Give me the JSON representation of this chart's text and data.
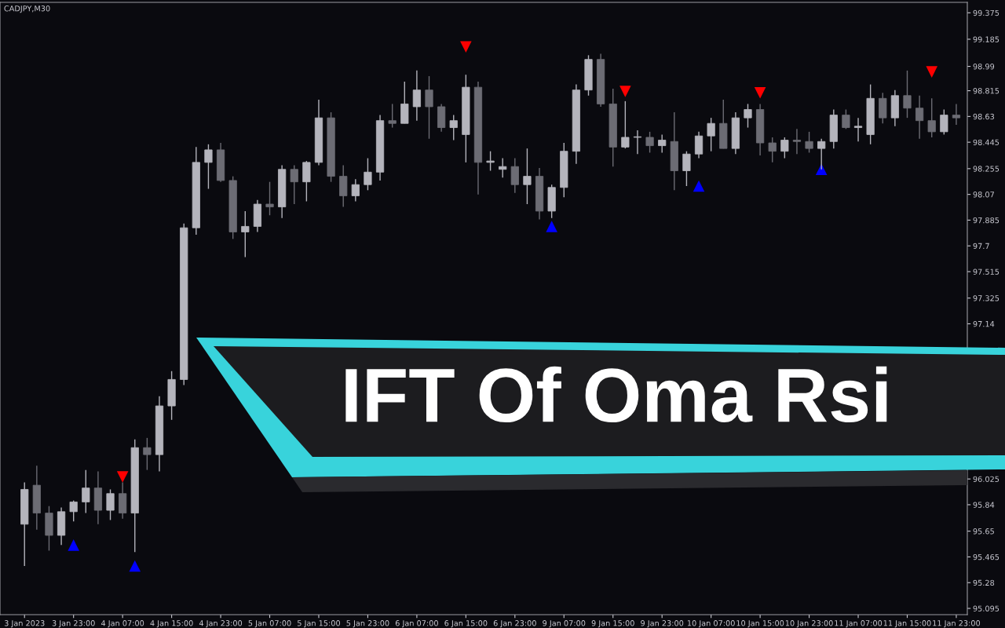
{
  "chart_data": {
    "type": "candlestick",
    "title": "IFT Of Oma Rsi",
    "annotations": [
      "CADJPY,M30"
    ],
    "categories": [
      "3 Jan 2023",
      null,
      null,
      null,
      "3 Jan 23:00",
      null,
      null,
      null,
      "4 Jan 07:00",
      null,
      null,
      null,
      "4 Jan 15:00",
      null,
      null,
      null,
      "4 Jan 23:00",
      null,
      null,
      null,
      "5 Jan 07:00",
      null,
      null,
      null,
      "5 Jan 15:00",
      null,
      null,
      null,
      "5 Jan 23:00",
      null,
      null,
      null,
      "6 Jan 07:00",
      null,
      null,
      null,
      "6 Jan 15:00",
      null,
      null,
      null,
      "6 Jan 23:00",
      null,
      null,
      null,
      "9 Jan 07:00",
      null,
      null,
      null,
      "9 Jan 15:00",
      null,
      null,
      null,
      "9 Jan 23:00",
      null,
      null,
      null,
      "10 Jan 07:00",
      null,
      null,
      null,
      "10 Jan 15:00",
      null,
      null,
      null,
      "10 Jan 23:00",
      null,
      null,
      null,
      "11 Jan 07:00",
      null,
      null,
      null,
      "11 Jan 15:00",
      null,
      null,
      null,
      "11 Jan 23:00"
    ],
    "ohlc": [
      [
        95.7,
        96.0,
        95.4,
        95.95
      ],
      [
        95.98,
        96.12,
        95.66,
        95.78
      ],
      [
        95.78,
        95.83,
        95.51,
        95.62
      ],
      [
        95.62,
        95.82,
        95.55,
        95.79
      ],
      [
        95.79,
        95.87,
        95.72,
        95.86
      ],
      [
        95.86,
        96.09,
        95.78,
        95.96
      ],
      [
        95.96,
        96.08,
        95.7,
        95.8
      ],
      [
        95.8,
        95.95,
        95.73,
        95.92
      ],
      [
        95.92,
        96.0,
        95.74,
        95.78
      ],
      [
        95.78,
        96.31,
        95.5,
        96.25
      ],
      [
        96.25,
        96.32,
        96.09,
        96.2
      ],
      [
        96.2,
        96.62,
        96.08,
        96.55
      ],
      [
        96.55,
        96.8,
        96.45,
        96.74
      ],
      [
        96.74,
        97.86,
        96.7,
        97.83
      ],
      [
        97.83,
        98.41,
        97.78,
        98.3
      ],
      [
        98.3,
        98.43,
        98.11,
        98.39
      ],
      [
        98.39,
        98.44,
        98.16,
        98.17
      ],
      [
        98.17,
        98.2,
        97.75,
        97.8
      ],
      [
        97.8,
        97.95,
        97.62,
        97.84
      ],
      [
        97.84,
        98.03,
        97.8,
        98.0
      ],
      [
        98.0,
        98.16,
        97.92,
        97.98
      ],
      [
        97.98,
        98.28,
        97.9,
        98.25
      ],
      [
        98.25,
        98.28,
        98.0,
        98.16
      ],
      [
        98.16,
        98.31,
        98.02,
        98.3
      ],
      [
        98.3,
        98.75,
        98.28,
        98.62
      ],
      [
        98.62,
        98.66,
        98.16,
        98.2
      ],
      [
        98.2,
        98.28,
        97.98,
        98.06
      ],
      [
        98.06,
        98.18,
        98.02,
        98.14
      ],
      [
        98.14,
        98.33,
        98.1,
        98.23
      ],
      [
        98.23,
        98.64,
        98.17,
        98.6
      ],
      [
        98.6,
        98.72,
        98.55,
        98.58
      ],
      [
        98.58,
        98.88,
        98.58,
        98.72
      ],
      [
        98.7,
        98.96,
        98.6,
        98.82
      ],
      [
        98.82,
        98.92,
        98.47,
        98.7
      ],
      [
        98.7,
        98.72,
        98.52,
        98.55
      ],
      [
        98.55,
        98.64,
        98.46,
        98.6
      ],
      [
        98.5,
        98.93,
        98.3,
        98.84
      ],
      [
        98.84,
        98.88,
        98.07,
        98.3
      ],
      [
        98.3,
        98.38,
        98.24,
        98.31
      ],
      [
        98.25,
        98.33,
        98.19,
        98.27
      ],
      [
        98.27,
        98.33,
        98.08,
        98.14
      ],
      [
        98.14,
        98.4,
        98.0,
        98.2
      ],
      [
        98.2,
        98.26,
        97.89,
        97.95
      ],
      [
        97.95,
        98.14,
        97.9,
        98.12
      ],
      [
        98.12,
        98.44,
        98.05,
        98.38
      ],
      [
        98.38,
        98.86,
        98.29,
        98.82
      ],
      [
        98.82,
        99.07,
        98.78,
        99.04
      ],
      [
        99.04,
        99.08,
        98.7,
        98.72
      ],
      [
        98.72,
        98.83,
        98.27,
        98.41
      ],
      [
        98.41,
        98.74,
        98.4,
        98.48
      ],
      [
        98.48,
        98.53,
        98.36,
        98.48
      ],
      [
        98.48,
        98.52,
        98.37,
        98.42
      ],
      [
        98.42,
        98.5,
        98.37,
        98.46
      ],
      [
        98.45,
        98.66,
        98.1,
        98.24
      ],
      [
        98.24,
        98.38,
        98.13,
        98.36
      ],
      [
        98.36,
        98.52,
        98.33,
        98.49
      ],
      [
        98.49,
        98.62,
        98.38,
        98.58
      ],
      [
        98.58,
        98.75,
        98.4,
        98.4
      ],
      [
        98.4,
        98.66,
        98.36,
        98.62
      ],
      [
        98.62,
        98.72,
        98.55,
        98.68
      ],
      [
        98.68,
        98.72,
        98.35,
        98.44
      ],
      [
        98.44,
        98.48,
        98.3,
        98.38
      ],
      [
        98.38,
        98.48,
        98.33,
        98.46
      ],
      [
        98.46,
        98.54,
        98.36,
        98.45
      ],
      [
        98.45,
        98.52,
        98.37,
        98.4
      ],
      [
        98.4,
        98.47,
        98.25,
        98.45
      ],
      [
        98.45,
        98.68,
        98.4,
        98.64
      ],
      [
        98.64,
        98.68,
        98.54,
        98.55
      ],
      [
        98.55,
        98.62,
        98.45,
        98.56
      ],
      [
        98.5,
        98.86,
        98.43,
        98.76
      ],
      [
        98.76,
        98.8,
        98.58,
        98.62
      ],
      [
        98.62,
        98.82,
        98.56,
        98.78
      ],
      [
        98.78,
        98.96,
        98.62,
        98.69
      ],
      [
        98.69,
        98.78,
        98.47,
        98.6
      ],
      [
        98.6,
        98.76,
        98.48,
        98.52
      ],
      [
        98.52,
        98.68,
        98.5,
        98.64
      ],
      [
        98.64,
        98.72,
        98.57,
        98.62
      ]
    ],
    "colors": [
      "#b4b4bc",
      "#6c6c74",
      "#6c6c74",
      "#b4b4bc",
      "#b4b4bc",
      "#b4b4bc",
      "#6c6c74",
      "#b4b4bc",
      "#6c6c74",
      "#b4b4bc",
      "#6c6c74",
      "#b4b4bc",
      "#b4b4bc",
      "#b4b4bc",
      "#b4b4bc",
      "#b4b4bc",
      "#6c6c74",
      "#6c6c74",
      "#b4b4bc",
      "#b4b4bc",
      "#6c6c74",
      "#b4b4bc",
      "#6c6c74",
      "#b4b4bc",
      "#b4b4bc",
      "#6c6c74",
      "#6c6c74",
      "#b4b4bc",
      "#b4b4bc",
      "#b4b4bc",
      "#6c6c74",
      "#b4b4bc",
      "#b4b4bc",
      "#6c6c74",
      "#6c6c74",
      "#b4b4bc",
      "#b4b4bc",
      "#6c6c74",
      "#b4b4bc",
      "#b4b4bc",
      "#6c6c74",
      "#b4b4bc",
      "#6c6c74",
      "#b4b4bc",
      "#b4b4bc",
      "#b4b4bc",
      "#b4b4bc",
      "#6c6c74",
      "#6c6c74",
      "#b4b4bc",
      "#b4b4bc",
      "#6c6c74",
      "#b4b4bc",
      "#6c6c74",
      "#b4b4bc",
      "#b4b4bc",
      "#b4b4bc",
      "#6c6c74",
      "#b4b4bc",
      "#b4b4bc",
      "#6c6c74",
      "#6c6c74",
      "#b4b4bc",
      "#6c6c74",
      "#6c6c74",
      "#b4b4bc",
      "#b4b4bc",
      "#6c6c74",
      "#b4b4bc",
      "#b4b4bc",
      "#6c6c74",
      "#b4b4bc",
      "#6c6c74",
      "#6c6c74",
      "#6c6c74",
      "#b4b4bc",
      "#6c6c74"
    ],
    "series": [
      {
        "type": "scatter",
        "marker": "triangle_down",
        "color": "#ff0000",
        "values": [
          null,
          null,
          null,
          null,
          null,
          null,
          null,
          null,
          96.04,
          null,
          null,
          null,
          null,
          null,
          null,
          null,
          null,
          null,
          null,
          null,
          null,
          null,
          null,
          null,
          null,
          null,
          null,
          null,
          null,
          null,
          null,
          null,
          null,
          null,
          null,
          null,
          99.13,
          null,
          null,
          null,
          null,
          null,
          null,
          null,
          null,
          null,
          null,
          null,
          null,
          98.81,
          null,
          null,
          null,
          null,
          null,
          null,
          null,
          null,
          null,
          null,
          98.8,
          null,
          null,
          null,
          null,
          null,
          null,
          null,
          null,
          null,
          null,
          null,
          null,
          null,
          98.95,
          null,
          null
        ]
      },
      {
        "type": "scatter",
        "marker": "triangle_up",
        "color": "#0000ff",
        "values": [
          null,
          null,
          null,
          null,
          95.55,
          null,
          null,
          null,
          null,
          95.4,
          null,
          null,
          null,
          null,
          null,
          null,
          null,
          null,
          null,
          null,
          null,
          null,
          null,
          null,
          null,
          null,
          null,
          null,
          null,
          null,
          null,
          null,
          null,
          null,
          null,
          null,
          null,
          null,
          null,
          null,
          null,
          null,
          null,
          97.84,
          null,
          null,
          null,
          null,
          null,
          null,
          null,
          null,
          null,
          null,
          null,
          98.13,
          null,
          null,
          null,
          null,
          null,
          null,
          null,
          null,
          null,
          98.25,
          null,
          null,
          null,
          null,
          null,
          null,
          null,
          null,
          null,
          null,
          null
        ]
      }
    ],
    "ylim": [
      95.05,
      99.45
    ],
    "yticks": [
      95.095,
      95.28,
      95.465,
      95.65,
      95.84,
      96.025,
      97.14,
      97.325,
      97.515,
      97.7,
      97.885,
      98.07,
      98.255,
      98.445,
      98.63,
      98.815,
      98.99,
      99.185,
      99.375
    ],
    "grid": false,
    "legend": false
  }
}
